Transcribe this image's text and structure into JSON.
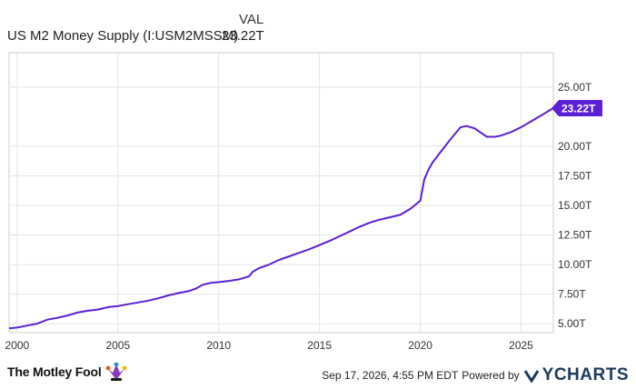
{
  "legend": {
    "column_header": "VAL",
    "series_name": "US M2 Money Supply (I:USM2MSSM)",
    "series_value": "23.22T"
  },
  "footer": {
    "brand": "The Motley Fool",
    "timestamp": "Sep 17, 2026, 4:55 PM EDT",
    "powered_by": "Powered by",
    "provider": "YCHARTS"
  },
  "colors": {
    "line": "#5b1fd6",
    "grid": "#e4e4e4",
    "border": "#cccccc"
  },
  "chart_data": {
    "type": "line",
    "title": "",
    "xlabel": "",
    "ylabel": "",
    "x_ticks": [
      "2000",
      "2005",
      "2010",
      "2015",
      "2020",
      "2025"
    ],
    "y_ticks": [
      "5.00T",
      "7.50T",
      "10.00T",
      "12.50T",
      "15.00T",
      "17.50T",
      "20.00T",
      "25.00T"
    ],
    "xlim": [
      1999.6,
      2026.6
    ],
    "ylim": [
      4.25,
      27.9
    ],
    "grid": true,
    "last_value_label": "23.22T",
    "series": [
      {
        "name": "US M2 Money Supply (I:USM2MSSM)",
        "x": [
          1999.6,
          2000.0,
          2000.5,
          2001.0,
          2001.5,
          2002.0,
          2002.5,
          2003.0,
          2003.5,
          2004.0,
          2004.5,
          2005.0,
          2005.5,
          2006.0,
          2006.5,
          2007.0,
          2007.5,
          2008.0,
          2008.5,
          2008.9,
          2009.2,
          2009.6,
          2010.0,
          2010.5,
          2011.0,
          2011.5,
          2011.7,
          2012.0,
          2012.5,
          2013.0,
          2013.5,
          2014.0,
          2014.5,
          2015.0,
          2015.5,
          2016.0,
          2016.5,
          2017.0,
          2017.5,
          2018.0,
          2018.5,
          2019.0,
          2019.5,
          2020.0,
          2020.2,
          2020.4,
          2020.6,
          2021.0,
          2021.5,
          2022.0,
          2022.3,
          2022.7,
          2023.0,
          2023.3,
          2023.7,
          2024.0,
          2024.5,
          2025.0,
          2025.5,
          2026.0,
          2026.6
        ],
        "values": [
          4.62,
          4.68,
          4.85,
          5.02,
          5.35,
          5.5,
          5.7,
          5.95,
          6.1,
          6.2,
          6.4,
          6.5,
          6.65,
          6.8,
          6.95,
          7.15,
          7.4,
          7.6,
          7.75,
          8.0,
          8.3,
          8.45,
          8.52,
          8.62,
          8.75,
          9.0,
          9.4,
          9.7,
          10.0,
          10.4,
          10.7,
          11.0,
          11.3,
          11.65,
          12.0,
          12.4,
          12.8,
          13.2,
          13.55,
          13.8,
          14.0,
          14.2,
          14.7,
          15.4,
          17.2,
          18.0,
          18.6,
          19.5,
          20.6,
          21.6,
          21.7,
          21.5,
          21.15,
          20.8,
          20.8,
          20.9,
          21.2,
          21.6,
          22.1,
          22.6,
          23.22
        ]
      }
    ]
  }
}
